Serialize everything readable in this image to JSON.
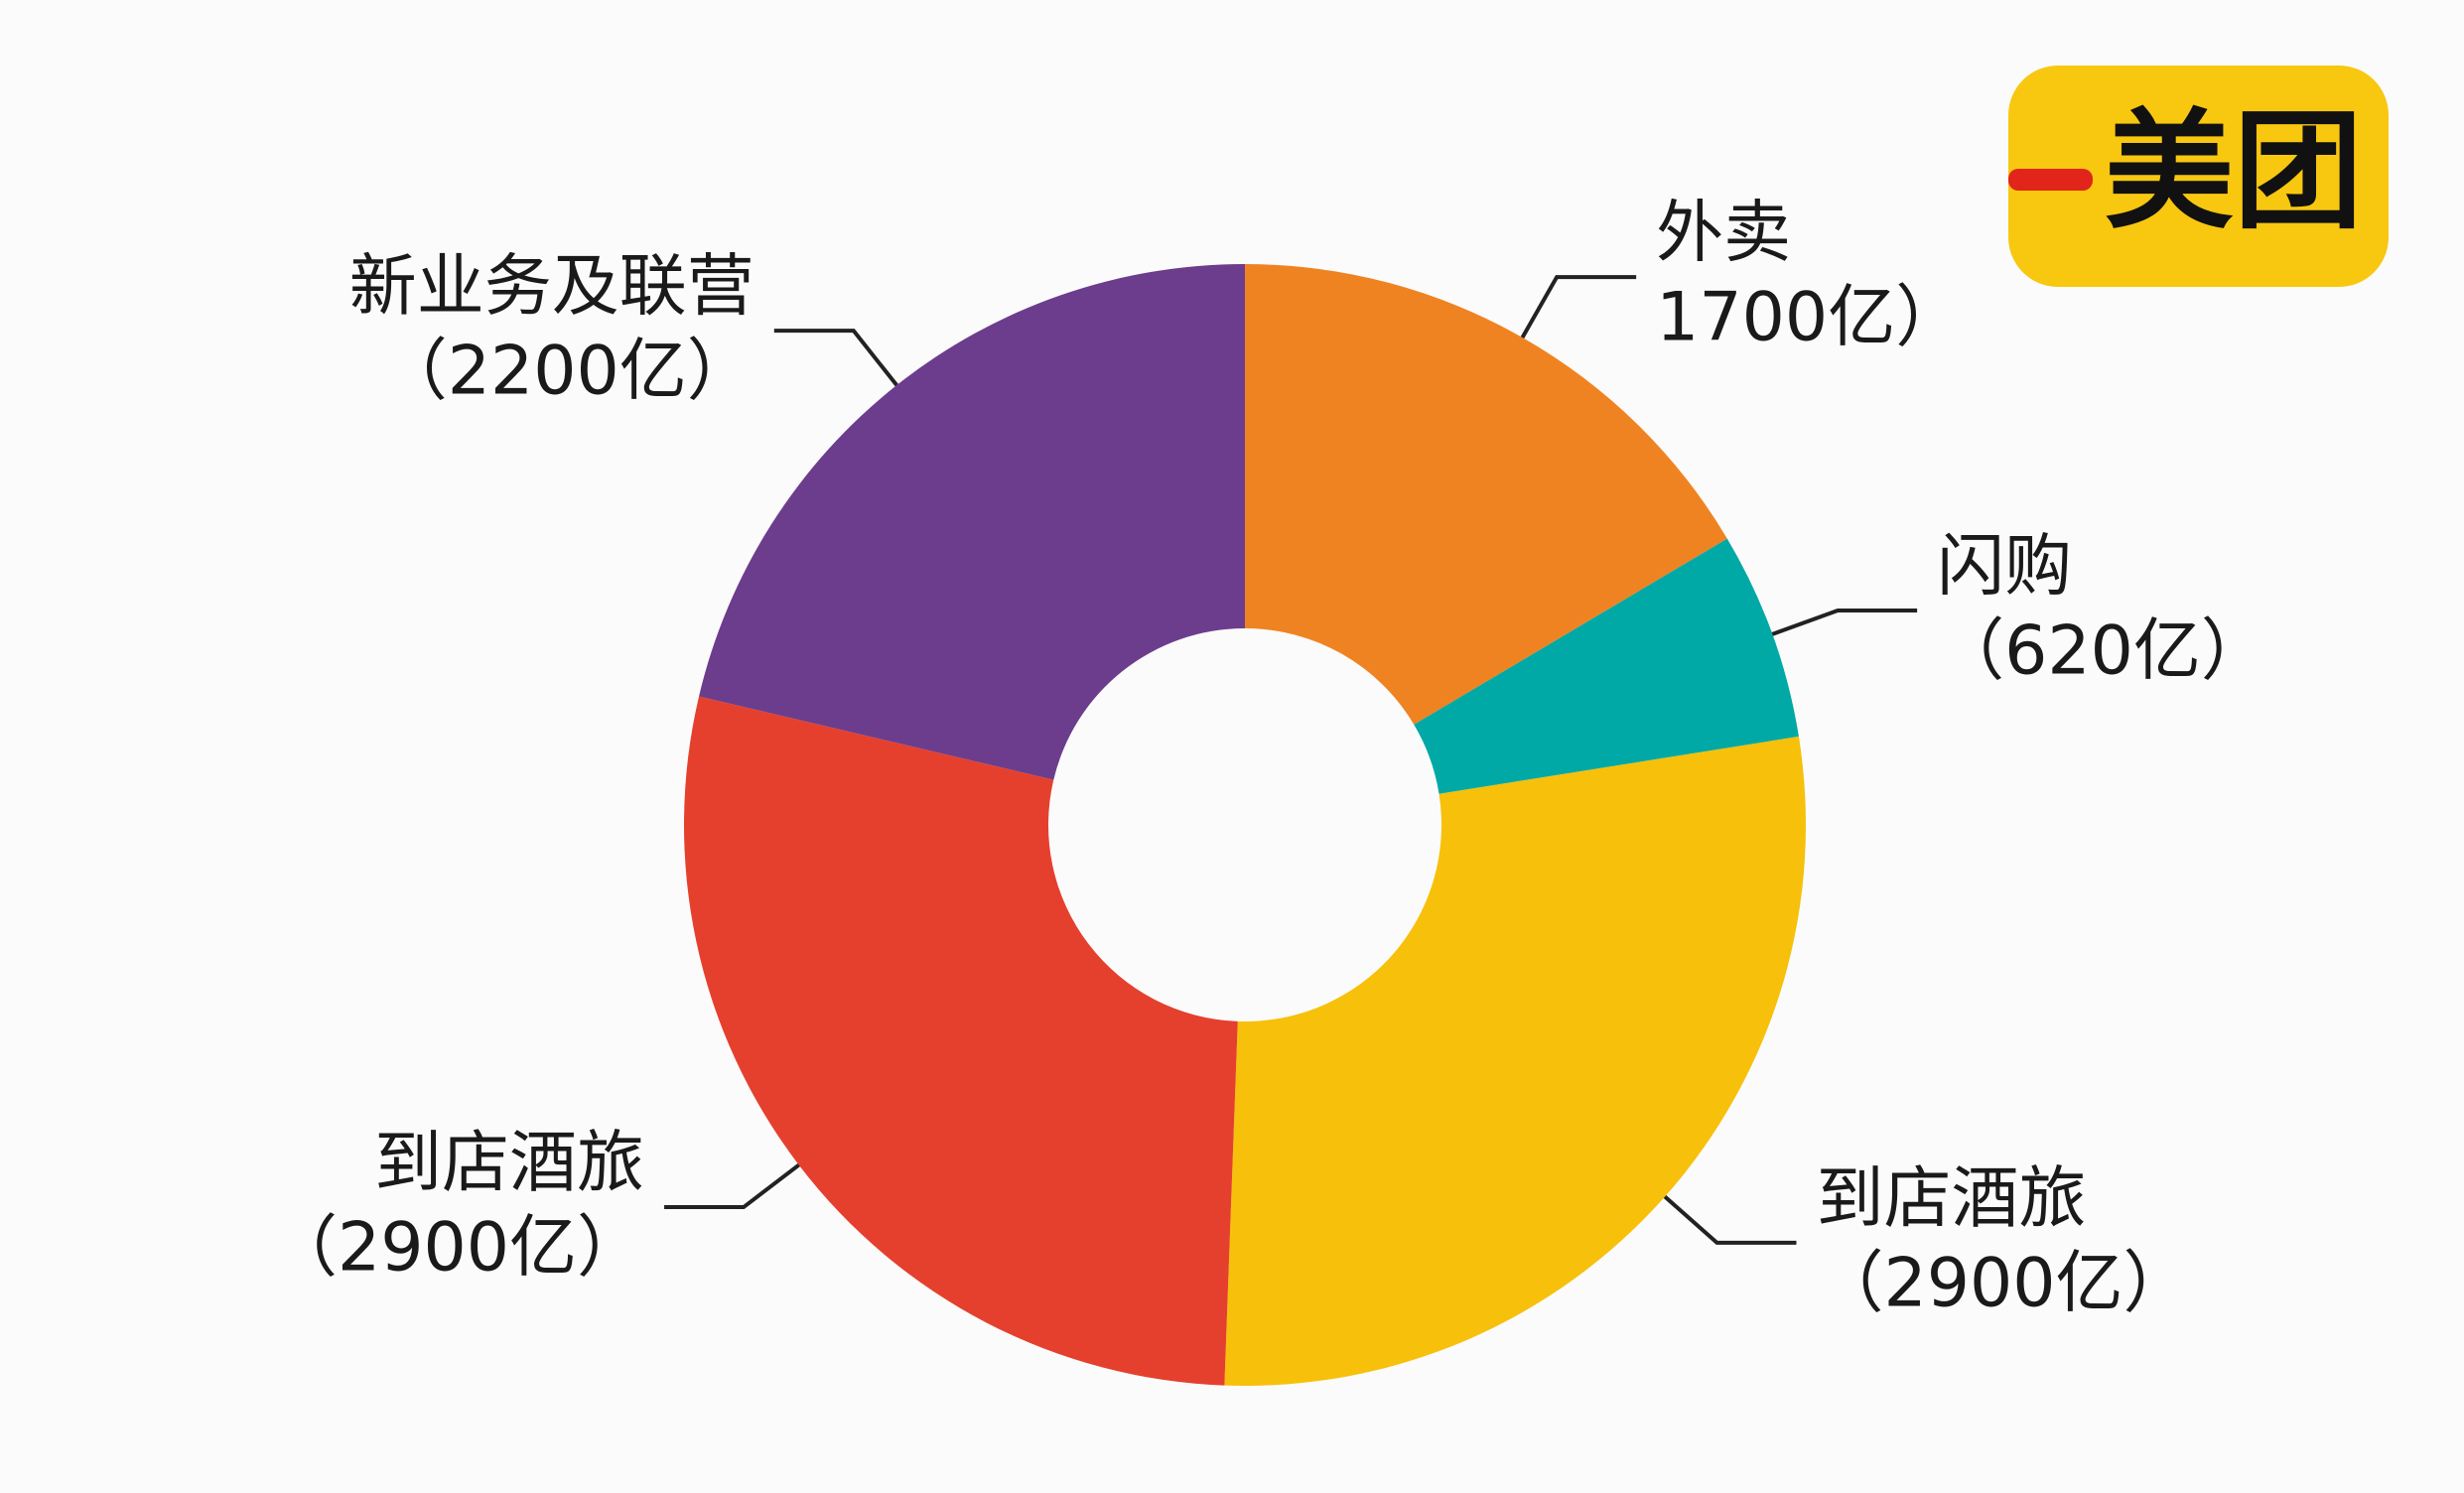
{
  "chart_data": {
    "type": "pie",
    "categories": [
      "外卖",
      "闪购",
      "到店酒旅",
      "到店酒旅",
      "新业务及联营"
    ],
    "values": [
      1700,
      620,
      2900,
      2900,
      2200
    ],
    "value_labels": [
      "1700亿）",
      "（620亿）",
      "（2900亿）",
      "（2900亿）",
      "（2200亿）"
    ],
    "colors": [
      "#f08321",
      "#00a9a5",
      "#f7c00a",
      "#e5402e",
      "#6c3d8c"
    ]
  },
  "logo": "美团"
}
